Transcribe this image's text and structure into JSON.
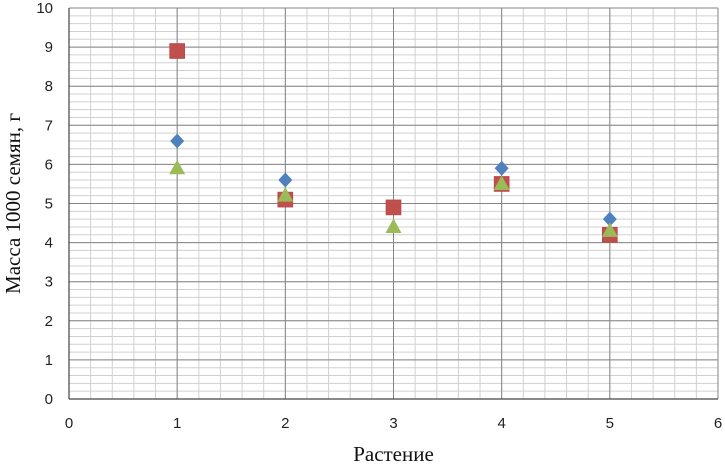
{
  "chart_data": {
    "type": "scatter",
    "xlabel": "Растение",
    "ylabel": "Масса 1000 семян, г",
    "xlim": [
      0,
      6
    ],
    "ylim": [
      0,
      10
    ],
    "xticks": [
      "0",
      "1",
      "2",
      "3",
      "4",
      "5",
      "6"
    ],
    "yticks": [
      "0",
      "1",
      "2",
      "3",
      "4",
      "5",
      "6",
      "7",
      "8",
      "9",
      "10"
    ],
    "grid": true,
    "legend": "none",
    "series": [
      {
        "marker": "square",
        "color": "#c0504d",
        "x": [
          1,
          2,
          3,
          4,
          5
        ],
        "y": [
          8.9,
          5.1,
          4.9,
          5.5,
          4.2
        ]
      },
      {
        "marker": "diamond",
        "color": "#4f81bd",
        "x": [
          1,
          2,
          4,
          5
        ],
        "y": [
          6.6,
          5.6,
          5.9,
          4.6
        ]
      },
      {
        "marker": "triangle",
        "color": "#9bbb59",
        "x": [
          1,
          2,
          3,
          4,
          5
        ],
        "y": [
          5.9,
          5.2,
          4.4,
          5.5,
          4.3
        ]
      }
    ]
  }
}
